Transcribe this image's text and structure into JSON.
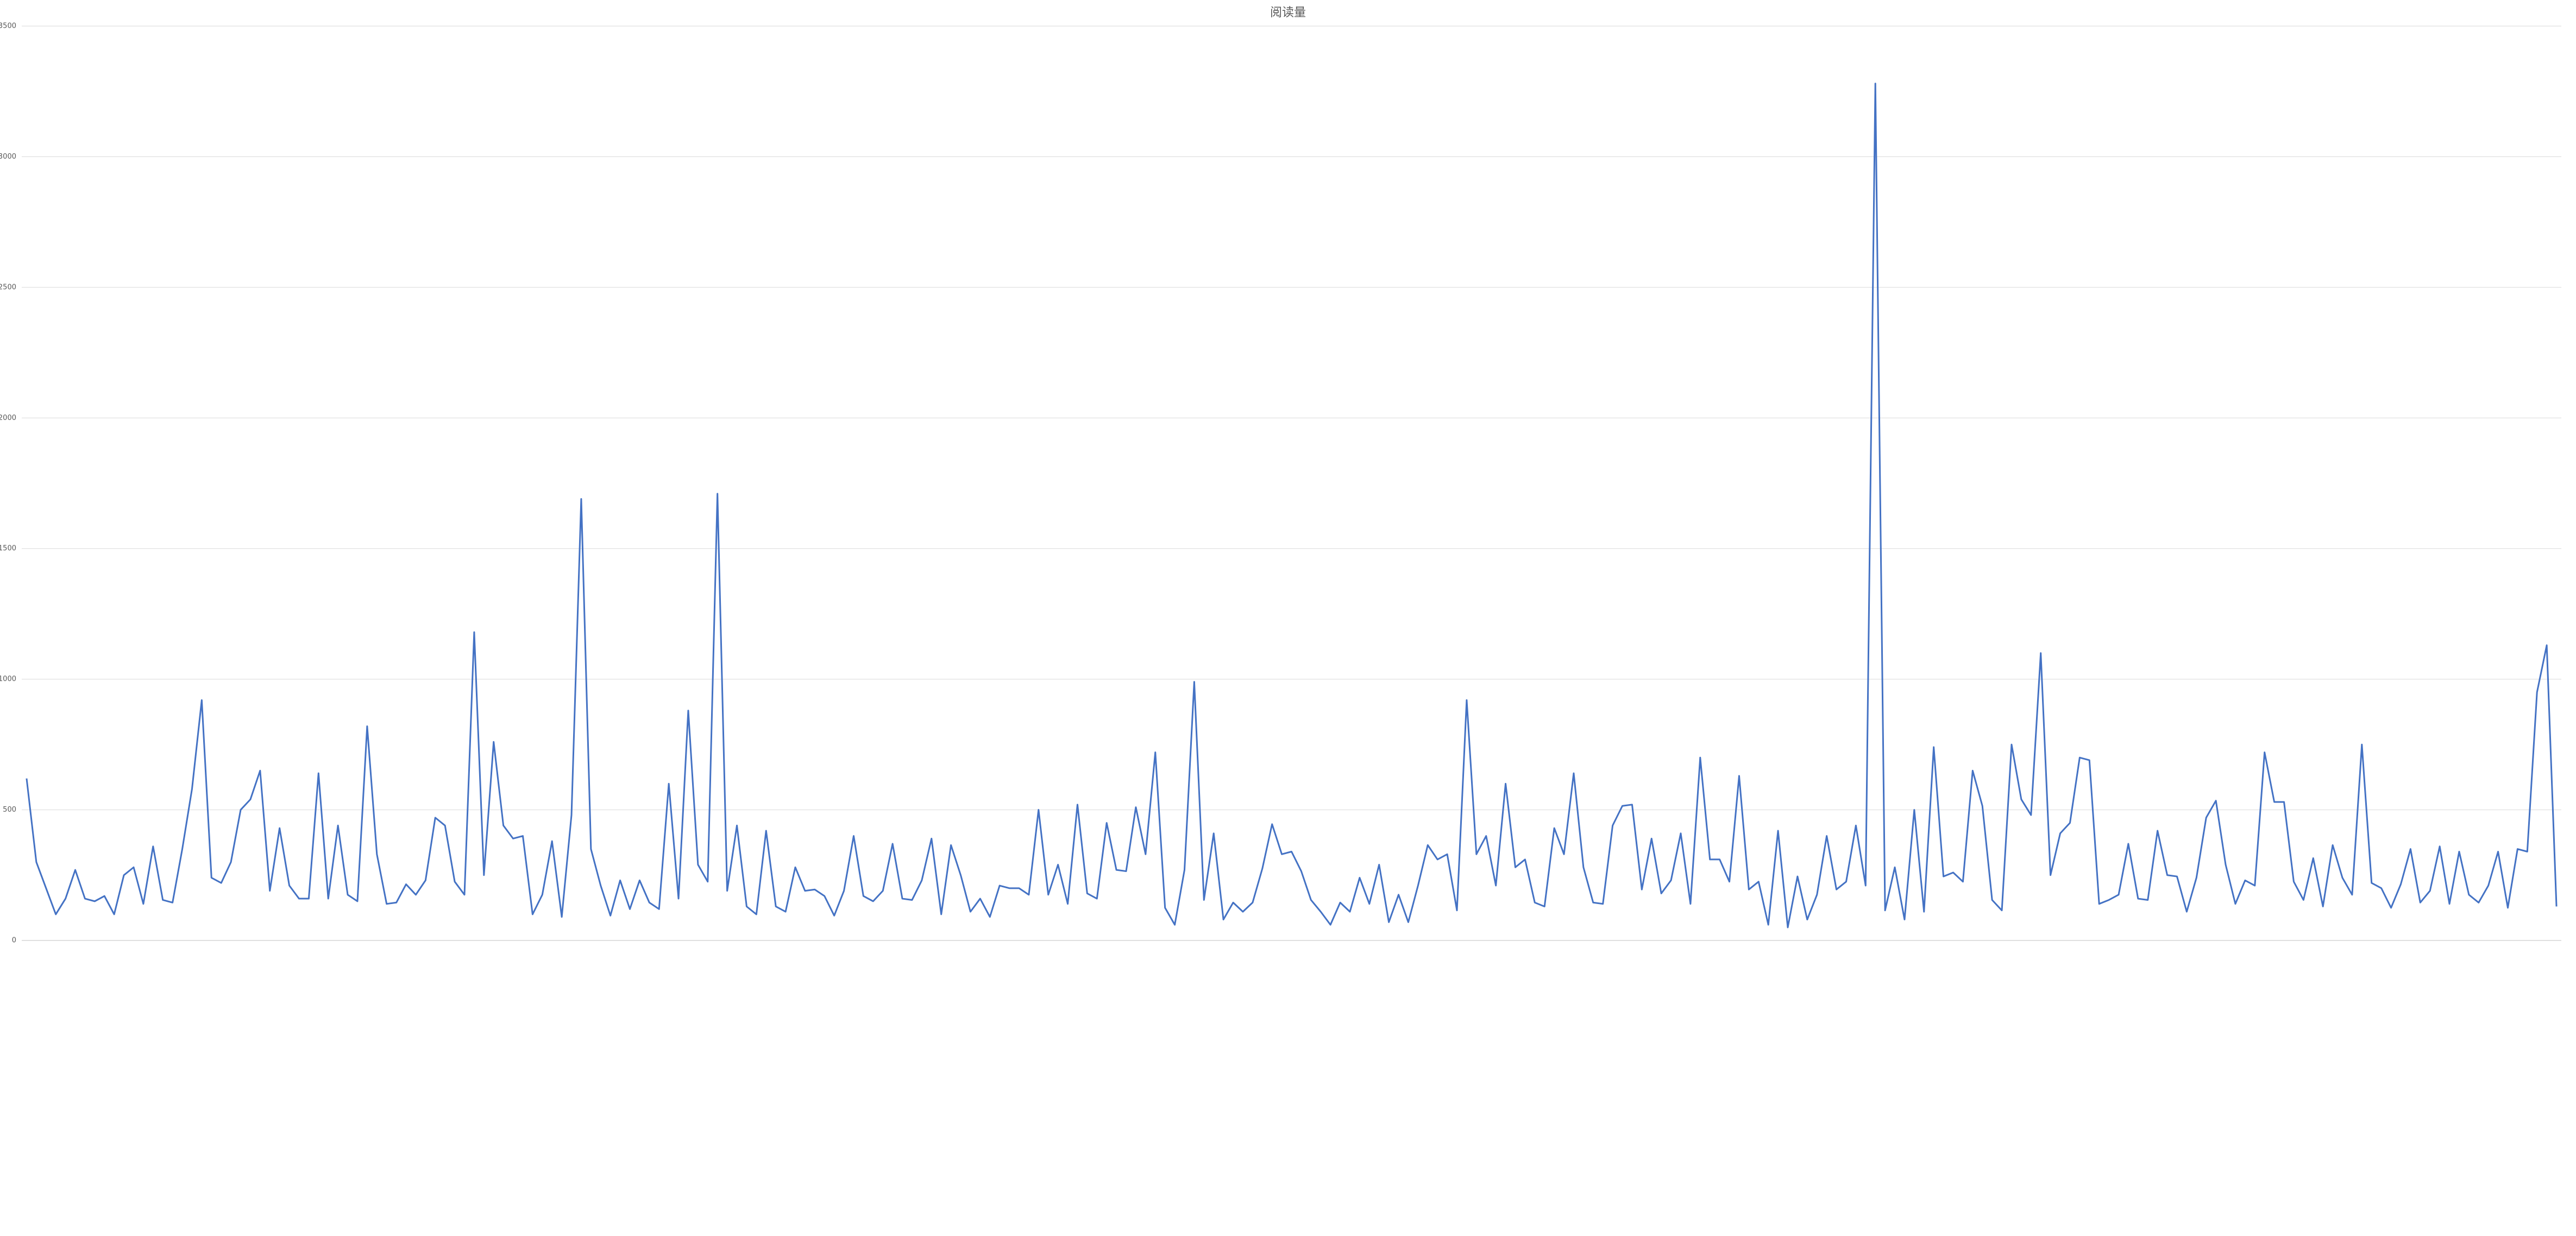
{
  "chart_data": {
    "type": "line",
    "title": "阅读量",
    "categories": [
      null,
      null,
      null,
      null,
      null,
      null,
      null,
      null,
      null,
      null,
      null,
      null,
      null,
      null,
      null,
      null,
      null,
      null,
      null,
      null,
      null,
      null,
      null,
      null,
      null,
      null,
      null,
      null,
      null,
      null,
      null,
      null,
      null,
      null,
      null,
      null,
      null,
      null,
      null,
      null,
      null,
      null,
      null,
      null,
      null,
      null,
      null,
      null,
      null,
      null,
      null,
      null,
      null,
      null,
      null,
      null,
      null,
      null,
      null,
      null,
      null,
      null,
      null,
      null,
      null,
      null,
      null,
      null,
      null,
      null,
      null,
      null,
      null,
      null,
      null,
      null,
      null,
      null,
      null,
      null,
      null,
      null,
      null,
      null,
      null,
      null,
      null,
      null,
      null,
      null,
      null,
      null,
      null,
      null,
      null,
      null,
      null,
      null,
      null,
      null,
      null,
      null,
      null,
      null,
      null,
      null,
      null,
      null,
      null,
      null,
      null,
      null,
      null,
      null,
      null,
      null,
      null,
      null,
      null,
      null,
      null,
      null,
      null,
      null,
      null,
      null,
      null,
      null,
      null,
      null,
      null,
      null,
      null,
      null,
      null,
      null,
      null,
      null,
      null,
      null,
      null,
      null,
      null,
      null,
      null,
      null,
      null,
      null,
      null,
      null,
      null,
      null,
      null,
      null,
      null,
      null,
      null,
      null,
      null,
      null,
      null,
      null,
      null,
      null,
      null,
      null,
      null,
      null,
      null,
      null,
      null,
      null,
      null,
      null,
      null,
      null,
      null,
      null,
      null,
      null,
      null,
      null,
      null,
      null,
      null,
      null,
      null,
      null,
      null,
      null,
      null,
      null,
      null,
      null,
      null,
      null,
      null,
      null,
      null,
      null,
      null,
      null,
      null,
      null,
      null,
      null,
      null,
      null,
      null,
      null,
      null,
      null,
      null,
      null,
      null,
      null,
      null,
      null,
      null,
      null,
      null,
      null,
      null,
      null,
      null,
      null,
      null,
      null,
      null,
      null,
      null,
      null,
      null,
      null,
      null,
      null,
      null,
      null,
      null,
      null,
      null,
      null,
      null,
      null,
      null,
      null,
      null,
      null,
      null,
      null,
      null,
      null,
      null,
      null,
      null,
      null,
      null,
      null,
      null,
      null,
      null
    ],
    "values": [
      620,
      300,
      200,
      100,
      160,
      270,
      160,
      150,
      170,
      100,
      250,
      280,
      140,
      360,
      155,
      145,
      350,
      580,
      920,
      240,
      220,
      300,
      500,
      540,
      650,
      190,
      430,
      210,
      160,
      160,
      640,
      160,
      440,
      175,
      150,
      820,
      330,
      140,
      145,
      215,
      175,
      230,
      470,
      440,
      225,
      175,
      1180,
      250,
      760,
      440,
      390,
      400,
      100,
      175,
      380,
      90,
      480,
      1690,
      350,
      210,
      95,
      230,
      120,
      230,
      145,
      120,
      600,
      160,
      880,
      290,
      225,
      1710,
      190,
      440,
      130,
      100,
      420,
      130,
      110,
      280,
      190,
      195,
      170,
      95,
      190,
      400,
      170,
      150,
      190,
      370,
      160,
      155,
      230,
      390,
      100,
      365,
      250,
      110,
      160,
      90,
      210,
      200,
      200,
      175,
      500,
      175,
      290,
      140,
      520,
      180,
      160,
      450,
      270,
      265,
      510,
      330,
      720,
      125,
      60,
      270,
      990,
      155,
      410,
      80,
      145,
      110,
      145,
      275,
      445,
      330,
      340,
      265,
      155,
      110,
      60,
      145,
      110,
      240,
      140,
      290,
      70,
      175,
      70,
      210,
      365,
      310,
      330,
      115,
      920,
      330,
      400,
      210,
      600,
      280,
      310,
      145,
      130,
      430,
      330,
      640,
      280,
      145,
      140,
      440,
      515,
      520,
      195,
      390,
      180,
      230,
      410,
      140,
      700,
      310,
      310,
      225,
      630,
      195,
      225,
      60,
      420,
      50,
      245,
      80,
      175,
      400,
      195,
      225,
      440,
      210,
      3280,
      115,
      280,
      80,
      500,
      110,
      740,
      245,
      260,
      225,
      650,
      515,
      155,
      115,
      750,
      540,
      480,
      1100,
      250,
      410,
      450,
      700,
      690,
      140,
      155,
      175,
      370,
      160,
      155,
      420,
      250,
      245,
      110,
      240,
      470,
      535,
      290,
      140,
      230,
      210,
      720,
      530,
      530,
      225,
      155,
      315,
      130,
      365,
      240,
      175,
      750,
      220,
      200,
      125,
      215,
      350,
      145,
      190,
      360,
      140,
      340,
      175,
      145,
      210,
      340,
      125,
      350,
      340,
      950,
      1130,
      130
    ],
    "color": "#4472c4",
    "ylim": [
      0,
      3500
    ],
    "yticks": [
      0,
      500,
      1000,
      1500,
      2000,
      2500,
      3000,
      3500
    ],
    "grid": true
  }
}
